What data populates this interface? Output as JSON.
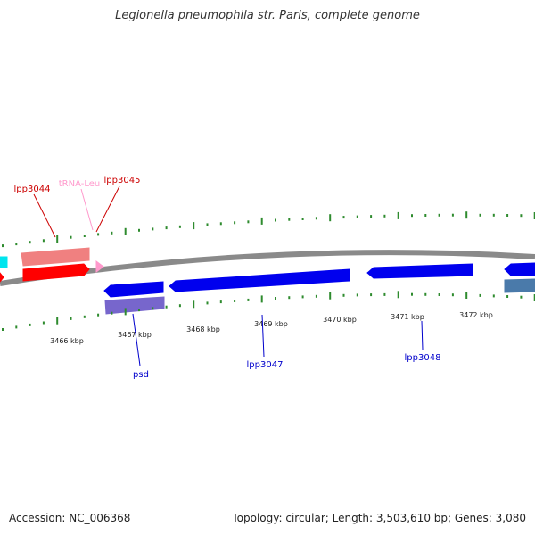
{
  "title": "Legionella pneumophila str. Paris, complete genome",
  "footer": {
    "accession": "Accession: NC_006368",
    "summary": "Topology: circular; Length: 3,503,610 bp; Genes: 3,080"
  },
  "colors": {
    "backbone": "#8a8a8a",
    "ticks": "#2e8b2e",
    "forward_gene": "#ff0000",
    "forward_gene_light": "#f08080",
    "trna": "#ff99cc",
    "reverse_gene": "#0000ee",
    "reverse_gene_light": "#7766cc",
    "reverse_gene_steel": "#4a7aaa",
    "cyan_gene": "#00e5ee",
    "forward_label": "#cc0000",
    "trna_label": "#ff99cc",
    "reverse_label": "#0000cc"
  },
  "scale_labels": [
    "3466 kbp",
    "3467 kbp",
    "3468 kbp",
    "3469 kbp",
    "3470 kbp",
    "3471 kbp",
    "3472 kbp"
  ],
  "gene_labels": [
    {
      "text": "lpp3044",
      "strand": "forward"
    },
    {
      "text": "tRNA-Leu",
      "strand": "trna"
    },
    {
      "text": "lpp3045",
      "strand": "forward"
    },
    {
      "text": "psd",
      "strand": "reverse"
    },
    {
      "text": "lpp3047",
      "strand": "reverse"
    },
    {
      "text": "lpp3048",
      "strand": "reverse"
    }
  ]
}
